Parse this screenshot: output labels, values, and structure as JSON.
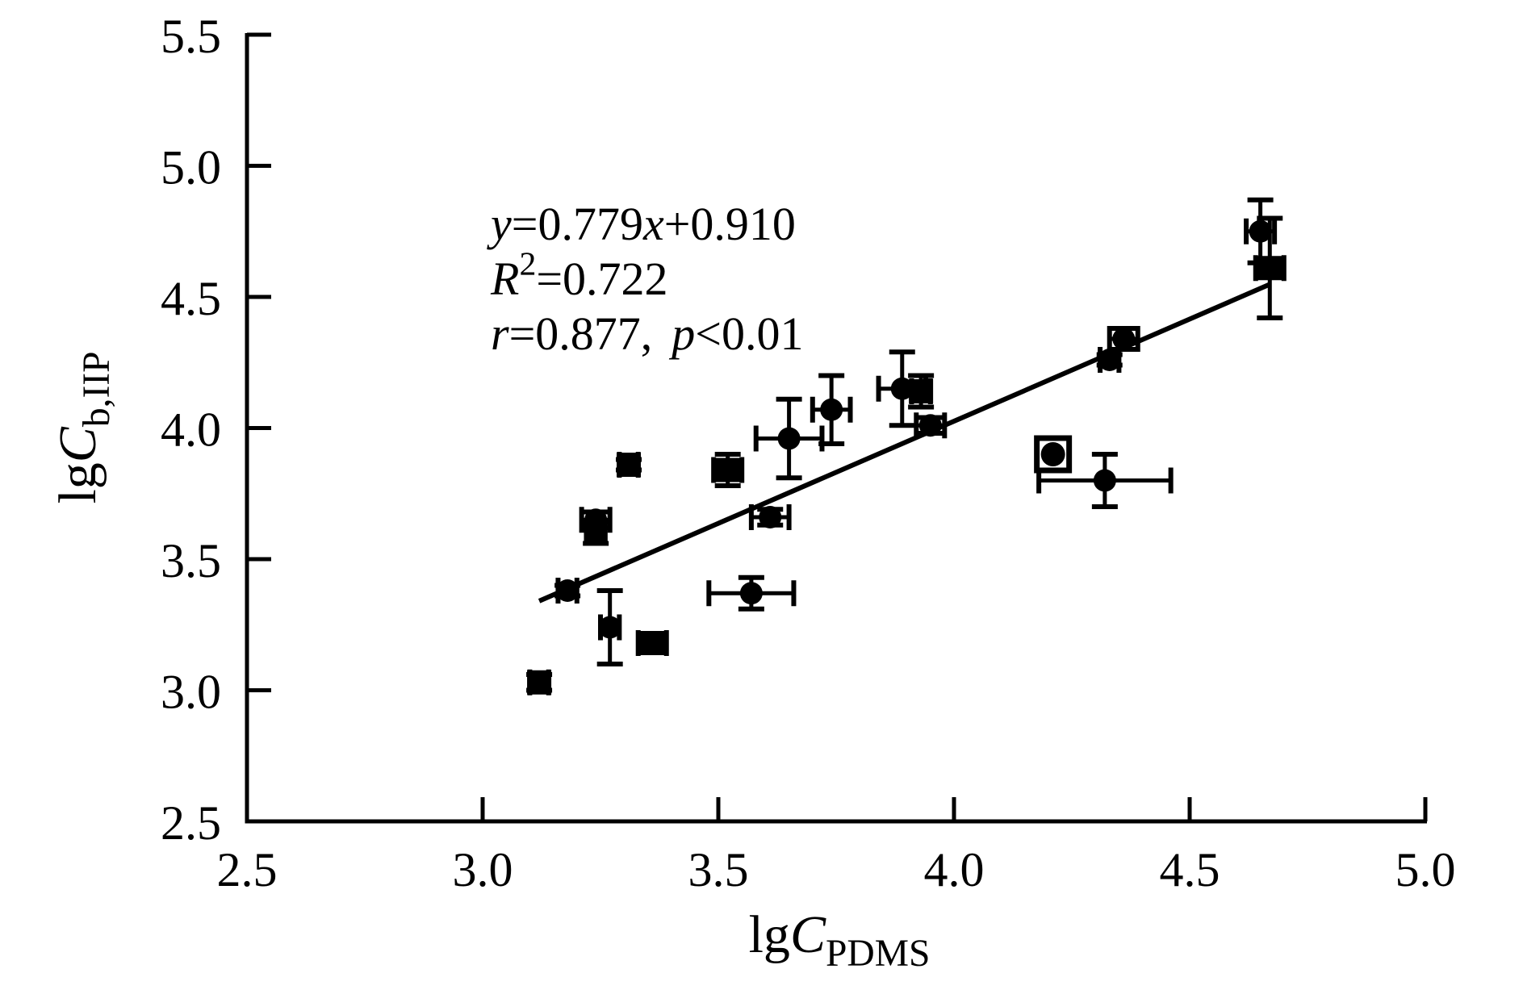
{
  "chart_data": {
    "type": "scatter",
    "title": "",
    "xlabel": {
      "text": "lgC_PDMS",
      "parts": [
        {
          "t": "lg"
        },
        {
          "t": "C",
          "i": 1
        },
        {
          "t": "PDMS",
          "sub": 1
        }
      ]
    },
    "ylabel": {
      "text": "lgC_b,IIP",
      "parts": [
        {
          "t": "lg"
        },
        {
          "t": "C",
          "i": 1
        },
        {
          "t": "b,IIP",
          "sub": 1
        }
      ]
    },
    "xlim": [
      2.5,
      5.0
    ],
    "ylim": [
      2.5,
      5.5
    ],
    "xticks": [
      2.5,
      3.0,
      3.5,
      4.0,
      4.5,
      5.0
    ],
    "xtick_labels": [
      "2.5",
      "3.0",
      "3.5",
      "4.0",
      "4.5",
      "5.0"
    ],
    "yticks": [
      2.5,
      3.0,
      3.5,
      4.0,
      4.5,
      5.0,
      5.5
    ],
    "ytick_labels": [
      "2.5",
      "3.0",
      "3.5",
      "4.0",
      "4.5",
      "5.0",
      "5.5"
    ],
    "grid": false,
    "legend": null,
    "annotation": {
      "lines": [
        {
          "text": "y=0.779x+0.910",
          "parts": [
            {
              "t": "y",
              "i": 1
            },
            {
              "t": "=0.779"
            },
            {
              "t": "x",
              "i": 1
            },
            {
              "t": "+0.910"
            }
          ]
        },
        {
          "text": "R2=0.722",
          "parts": [
            {
              "t": "R",
              "i": 1
            },
            {
              "t": "2",
              "sup": 1
            },
            {
              "t": "=0.722"
            }
          ]
        },
        {
          "text": "r=0.877,  p<0.01",
          "parts": [
            {
              "t": "r",
              "i": 1
            },
            {
              "t": "=0.877,"
            },
            {
              "t": "p",
              "i": 1,
              "dx": 24
            },
            {
              "t": "<0.01"
            }
          ]
        }
      ]
    },
    "fit_line": {
      "equation": "y=0.779x+0.910",
      "slope": 0.779,
      "intercept": 0.91,
      "x_start": 3.12,
      "x_end": 4.67,
      "r_squared": 0.722,
      "r": 0.877,
      "p": "<0.01"
    },
    "series": [
      {
        "name": "circle-points",
        "marker": "circle",
        "points": [
          {
            "x": 3.18,
            "y": 3.38,
            "xe": 0.02,
            "ye": 0.02
          },
          {
            "x": 3.24,
            "y": 3.65,
            "xe": 0.03,
            "ye": 0.03
          },
          {
            "x": 3.24,
            "y": 3.6,
            "xe": 0.02,
            "ye": 0.04
          },
          {
            "x": 3.27,
            "y": 3.24,
            "xe": 0.02,
            "ye": 0.14
          },
          {
            "x": 3.57,
            "y": 3.37,
            "xe": 0.09,
            "ye": 0.06
          },
          {
            "x": 3.61,
            "y": 3.66,
            "xe": 0.04,
            "ye": 0.03
          },
          {
            "x": 3.65,
            "y": 3.96,
            "xe": 0.07,
            "ye": 0.15
          },
          {
            "x": 3.74,
            "y": 4.07,
            "xe": 0.04,
            "ye": 0.13
          },
          {
            "x": 3.89,
            "y": 4.15,
            "xe": 0.05,
            "ye": 0.14
          },
          {
            "x": 3.95,
            "y": 4.01,
            "xe": 0.03,
            "ye": 0.03
          },
          {
            "x": 4.32,
            "y": 3.8,
            "xe": 0.14,
            "ye": 0.1
          },
          {
            "x": 4.33,
            "y": 4.26,
            "xe": 0.02,
            "ye": 0.02
          },
          {
            "x": 4.36,
            "y": 4.34,
            "xe": 0.03,
            "ye": 0.04
          },
          {
            "x": 4.65,
            "y": 4.75,
            "xe": 0.03,
            "ye": 0.12
          }
        ]
      },
      {
        "name": "square-points",
        "marker": "square",
        "points": [
          {
            "x": 3.12,
            "y": 3.03,
            "xe": 0.02,
            "ye": 0.03
          },
          {
            "x": 3.31,
            "y": 3.86,
            "xe": 0.02,
            "ye": 0.02
          },
          {
            "x": 3.36,
            "y": 3.18,
            "xe": 0.03,
            "ye": 0.02
          },
          {
            "x": 3.52,
            "y": 3.84,
            "xe": 0.03,
            "ye": 0.06
          },
          {
            "x": 3.93,
            "y": 4.14,
            "xe": 0.02,
            "ye": 0.06
          },
          {
            "x": 4.67,
            "y": 4.61,
            "xe": 0.03,
            "ye": 0.19
          }
        ]
      },
      {
        "name": "square-ring-circle-points",
        "marker": "square-circle",
        "points": [
          {
            "x": 4.21,
            "y": 3.9,
            "xe": 0.03,
            "ye": 0.05
          }
        ]
      }
    ],
    "colors": {
      "foreground": "#000000",
      "background": "#ffffff"
    }
  }
}
